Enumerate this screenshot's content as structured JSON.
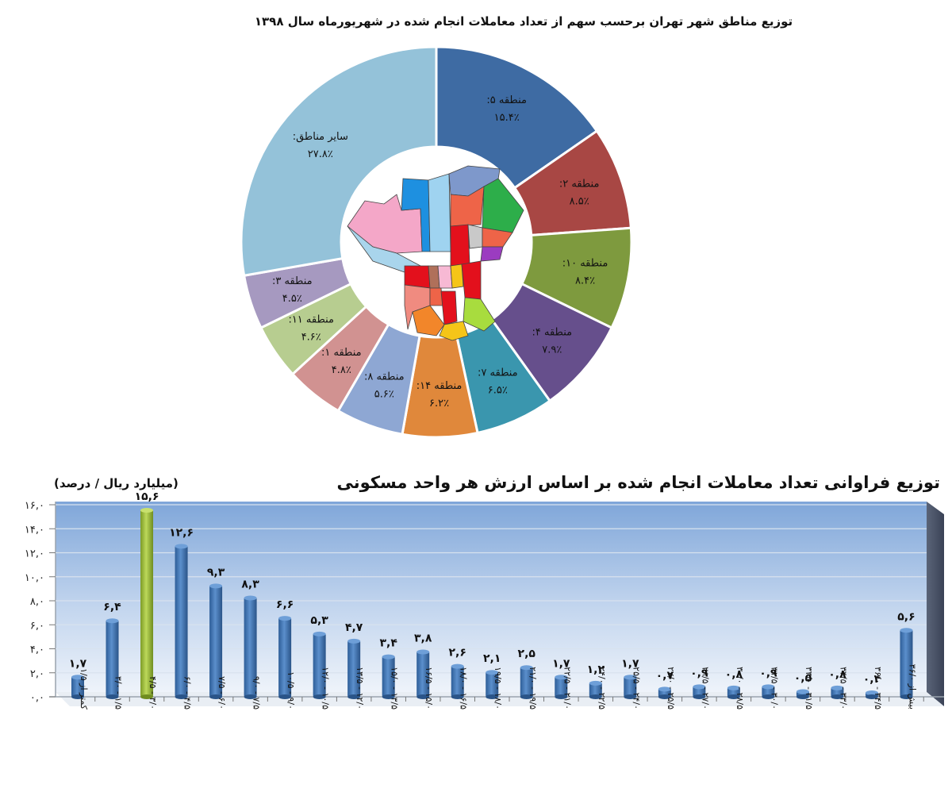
{
  "chart_data": [
    {
      "type": "pie",
      "variant": "donut",
      "title": "توزیع مناطق شهر تهران برحسب سهم از تعداد معاملات انجام شده در شهریورماه سال ۱۳۹۸",
      "center_image": "tehran-districts-map",
      "slices": [
        {
          "label": "منطقه ۵:",
          "value": 15.4,
          "value_label": "۱۵.۴٪",
          "color": "#3E6BA3"
        },
        {
          "label": "منطقه ۲:",
          "value": 8.5,
          "value_label": "۸.۵٪",
          "color": "#A84744"
        },
        {
          "label": "منطقه ۱۰:",
          "value": 8.4,
          "value_label": "۸.۴٪",
          "color": "#7E9A3E"
        },
        {
          "label": "منطقه ۴:",
          "value": 7.9,
          "value_label": "۷.۹٪",
          "color": "#664F8C"
        },
        {
          "label": "منطقه ۷:",
          "value": 6.5,
          "value_label": "۶.۵٪",
          "color": "#3A96AE"
        },
        {
          "label": "منطقه ۱۴:",
          "value": 6.2,
          "value_label": "۶.۲٪",
          "color": "#E0883B"
        },
        {
          "label": "منطقه ۸:",
          "value": 5.6,
          "value_label": "۵.۶٪",
          "color": "#8EA7D3"
        },
        {
          "label": "منطقه ۱:",
          "value": 4.8,
          "value_label": "۴.۸٪",
          "color": "#D19291"
        },
        {
          "label": "منطقه ۱۱:",
          "value": 4.6,
          "value_label": "۴.۶٪",
          "color": "#B7CD90"
        },
        {
          "label": "منطقه ۳:",
          "value": 4.5,
          "value_label": "۴.۵٪",
          "color": "#A699C0"
        },
        {
          "label": "سایر مناطق:",
          "value": 27.8,
          "value_label": "۲۷.۸٪",
          "color": "#94C2D9"
        }
      ]
    },
    {
      "type": "bar",
      "title": "توزیع فراوانی تعداد معاملات انجام شده بر اساس ارزش هر واحد مسکونی",
      "unit_label": "(میلیارد ریال / درصد)",
      "xlabel": "",
      "ylabel": "",
      "ylim": [
        0,
        16
      ],
      "yticks": [
        "۰,۰",
        "۲,۰",
        "۴,۰",
        "۶,۰",
        "۸,۰",
        "۱۰,۰",
        "۱۲,۰",
        "۱۴,۰",
        "۱۶,۰"
      ],
      "grid": true,
      "highlight_index": 2,
      "bar_color": "#3F73B0",
      "highlight_color": "#9BBB3B",
      "categories": [
        "کمتر از ۱/۵",
        "۱/۵ - ۳/۰",
        "۳/۰ - ۴/۵",
        "۴/۵ - ۶/۰",
        "۶/۰ - ۷/۵",
        "۷/۵ - ۹/۰",
        "۹/۰ - ۱۰/۵",
        "۱۰/۵ - ۱۲/۰",
        "۱۲/۰ - ۱۳/۵",
        "۱۳/۵ - ۱۵/۰",
        "۱۵/۰ - ۱۶/۵",
        "۱۶/۵ - ۱۸/۰",
        "۱۸/۰ - ۱۹/۵",
        "۱۹/۵ - ۲۱/۰",
        "۲۱/۰ - ۲۲/۵",
        "۲۲/۵ - ۲۴/۰",
        "۲۴/۰ - ۲۵/۵",
        "۲۵/۵ - ۲۷/۰",
        "۲۷/۰ - ۲۸/۵",
        "۲۸/۵ - ۳۰/۰",
        "۳۰/۰ - ۳۱/۵",
        "۳۱/۵ - ۳۳/۰",
        "۳۳/۰ - ۳۴/۵",
        "۳۴/۵ - ۳۶/۰",
        "بیش از ۳۶/۰"
      ],
      "values": [
        1.7,
        6.4,
        15.6,
        12.6,
        9.3,
        8.3,
        6.6,
        5.3,
        4.7,
        3.4,
        3.8,
        2.6,
        2.1,
        2.5,
        1.7,
        1.2,
        1.7,
        0.7,
        0.9,
        0.8,
        0.9,
        0.5,
        0.8,
        0.4,
        5.6
      ],
      "value_labels": [
        "۱,۷",
        "۶,۴",
        "۱۵,۶",
        "۱۲,۶",
        "۹,۳",
        "۸,۳",
        "۶,۶",
        "۵,۳",
        "۴,۷",
        "۳,۴",
        "۳,۸",
        "۲,۶",
        "۲,۱",
        "۲,۵",
        "۱,۷",
        "۱,۲",
        "۱,۷",
        "۰,۷",
        "۰,۹",
        "۰,۸",
        "۰,۹",
        "۰,۵",
        "۰,۸",
        "۰,۴",
        "۵,۶"
      ]
    }
  ],
  "donut": {
    "title": "توزیع مناطق شهر تهران برحسب سهم از تعداد معاملات انجام شده در شهریورماه سال ۱۳۹۸"
  },
  "bars": {
    "title": "توزیع فراوانی تعداد معاملات انجام شده بر اساس ارزش هر واحد مسکونی",
    "unit_label": "(میلیارد ریال / درصد)"
  }
}
